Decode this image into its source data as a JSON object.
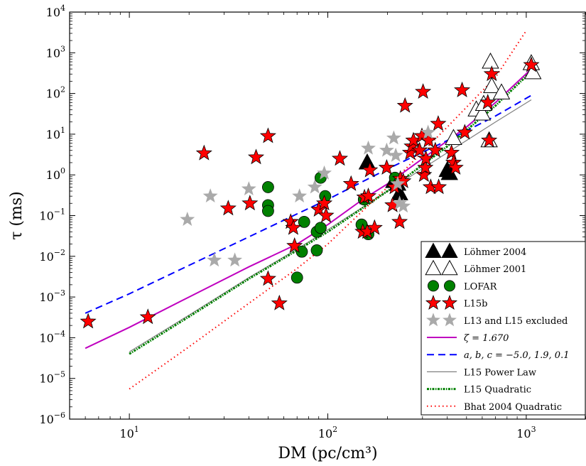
{
  "chart_data": {
    "type": "scatter",
    "xlabel": "DM (pc/cm³)",
    "ylabel": "τ (ms)",
    "xscale": "log",
    "yscale": "log",
    "xlim": [
      5,
      2000
    ],
    "ylim": [
      1e-06,
      10000.0
    ],
    "x_ticks": [
      {
        "exp": "1"
      },
      {
        "exp": "2"
      },
      {
        "exp": "3"
      }
    ],
    "y_ticks": [
      {
        "exp": "−6"
      },
      {
        "exp": "−5"
      },
      {
        "exp": "−4"
      },
      {
        "exp": "−3"
      },
      {
        "exp": "−2"
      },
      {
        "exp": "−1"
      },
      {
        "exp": "0"
      },
      {
        "exp": "1"
      },
      {
        "exp": "2"
      },
      {
        "exp": "3"
      },
      {
        "exp": "4"
      }
    ],
    "tick_base": "10",
    "legend_position": "lower right",
    "grid": false,
    "series": [
      {
        "name": "Löhmer 2004",
        "kind": "points",
        "marker": "triangle",
        "color": "#000000",
        "points": [
          [
            158,
            2.0
          ],
          [
            215,
            0.7
          ],
          [
            230,
            0.35
          ],
          [
            225,
            0.6
          ],
          [
            400,
            1.3
          ],
          [
            410,
            1.1
          ]
        ]
      },
      {
        "name": "Löhmer 2001",
        "kind": "points",
        "marker": "triangle",
        "color": "#ffffff",
        "points": [
          [
            560,
            40
          ],
          [
            600,
            32
          ],
          [
            610,
            55
          ],
          [
            650,
            7
          ],
          [
            660,
            600
          ],
          [
            670,
            150
          ],
          [
            750,
            105
          ],
          [
            1060,
            550
          ],
          [
            1080,
            330
          ],
          [
            430,
            8
          ]
        ]
      },
      {
        "name": "LOFAR",
        "kind": "points",
        "marker": "circle",
        "color": "#008000",
        "points": [
          [
            50,
            0.5
          ],
          [
            50,
            0.18
          ],
          [
            50,
            0.13
          ],
          [
            70,
            0.003
          ],
          [
            74,
            0.013
          ],
          [
            76,
            0.07
          ],
          [
            88,
            0.014
          ],
          [
            88,
            0.04
          ],
          [
            92,
            0.05
          ],
          [
            92,
            0.85
          ],
          [
            97,
            0.3
          ],
          [
            148,
            0.06
          ],
          [
            152,
            0.25
          ],
          [
            160,
            0.035
          ],
          [
            218,
            0.85
          ]
        ]
      },
      {
        "name": "L15b",
        "kind": "points",
        "marker": "star",
        "color": "#ff0000",
        "points": [
          [
            6.2,
            0.00025
          ],
          [
            12.4,
            0.00032
          ],
          [
            23.8,
            3.4
          ],
          [
            31.5,
            0.15
          ],
          [
            40.5,
            0.2
          ],
          [
            43.5,
            2.7
          ],
          [
            50,
            9
          ],
          [
            50,
            0.0028
          ],
          [
            57,
            0.0007
          ],
          [
            65,
            0.07
          ],
          [
            67,
            0.05
          ],
          [
            68,
            0.018
          ],
          [
            90,
            0.14
          ],
          [
            96,
            0.2
          ],
          [
            98,
            0.1
          ],
          [
            115,
            2.5
          ],
          [
            131,
            0.6
          ],
          [
            150,
            0.04
          ],
          [
            153,
            0.28
          ],
          [
            158,
            0.04
          ],
          [
            160,
            0.3
          ],
          [
            163,
            1.3
          ],
          [
            172,
            0.05
          ],
          [
            198,
            1.5
          ],
          [
            212,
            0.18
          ],
          [
            217,
            0.5
          ],
          [
            230,
            0.07
          ],
          [
            232,
            0.8
          ],
          [
            240,
            0.7
          ],
          [
            245,
            50
          ],
          [
            260,
            3.5
          ],
          [
            265,
            5
          ],
          [
            270,
            7
          ],
          [
            290,
            4
          ],
          [
            298,
            9
          ],
          [
            302,
            110
          ],
          [
            305,
            1.0
          ],
          [
            310,
            1.5
          ],
          [
            312,
            2.5
          ],
          [
            322,
            7
          ],
          [
            330,
            0.5
          ],
          [
            348,
            4
          ],
          [
            360,
            18
          ],
          [
            362,
            0.5
          ],
          [
            420,
            3.5
          ],
          [
            430,
            2
          ],
          [
            440,
            1.5
          ],
          [
            475,
            120
          ],
          [
            490,
            11
          ],
          [
            640,
            60
          ],
          [
            650,
            7
          ],
          [
            670,
            300
          ],
          [
            1060,
            500
          ]
        ]
      },
      {
        "name": "L13 and L15 excluded",
        "kind": "points",
        "marker": "star",
        "color": "#aaaaaa",
        "points": [
          [
            19.6,
            0.08
          ],
          [
            25.6,
            0.3
          ],
          [
            26.8,
            0.008
          ],
          [
            34,
            0.008
          ],
          [
            40,
            0.45
          ],
          [
            72,
            0.3
          ],
          [
            86,
            0.5
          ],
          [
            96,
            1.1
          ],
          [
            160,
            4.5
          ],
          [
            198,
            4
          ],
          [
            215,
            8
          ],
          [
            220,
            3
          ],
          [
            225,
            0.6
          ],
          [
            230,
            0.2
          ],
          [
            240,
            0.17
          ],
          [
            320,
            11
          ]
        ]
      },
      {
        "name": "ζ = 1.670",
        "kind": "line",
        "style": "solid",
        "color": "#bf00bf",
        "points": [
          [
            6,
            5.5e-05
          ],
          [
            10,
            0.00018
          ],
          [
            20,
            0.001
          ],
          [
            40,
            0.0055
          ],
          [
            70,
            0.02
          ],
          [
            100,
            0.06
          ],
          [
            150,
            0.25
          ],
          [
            200,
            0.6
          ],
          [
            300,
            2.5
          ],
          [
            500,
            15
          ],
          [
            700,
            60
          ],
          [
            1060,
            400
          ]
        ]
      },
      {
        "name": "a, b, c = −5.0, 1.9, 0.1",
        "kind": "line",
        "style": "dashed",
        "color": "#0000ff",
        "points": [
          [
            6,
            0.0004
          ],
          [
            10,
            0.0012
          ],
          [
            20,
            0.006
          ],
          [
            40,
            0.03
          ],
          [
            70,
            0.11
          ],
          [
            100,
            0.25
          ],
          [
            200,
            1.4
          ],
          [
            400,
            7
          ],
          [
            700,
            28
          ],
          [
            1060,
            90
          ]
        ]
      },
      {
        "name": "L15 Power Law",
        "kind": "line",
        "style": "solid",
        "color": "#808080",
        "points": [
          [
            10,
            4.5e-05
          ],
          [
            20,
            0.00036
          ],
          [
            40,
            0.003
          ],
          [
            70,
            0.015
          ],
          [
            100,
            0.045
          ],
          [
            200,
            0.4
          ],
          [
            400,
            3.5
          ],
          [
            700,
            20
          ],
          [
            1060,
            70
          ]
        ]
      },
      {
        "name": "L15 Quadratic",
        "kind": "line",
        "style": "dashdot",
        "color": "#008000",
        "points": [
          [
            10,
            4e-05
          ],
          [
            20,
            0.00033
          ],
          [
            40,
            0.0028
          ],
          [
            70,
            0.014
          ],
          [
            100,
            0.04
          ],
          [
            200,
            0.4
          ],
          [
            400,
            5
          ],
          [
            700,
            50
          ],
          [
            1060,
            350
          ]
        ]
      },
      {
        "name": "Bhat 2004 Quadratic",
        "kind": "line",
        "style": "dotted",
        "color": "#ff0000",
        "points": [
          [
            10,
            5.5e-06
          ],
          [
            20,
            6e-05
          ],
          [
            40,
            0.0007
          ],
          [
            70,
            0.005
          ],
          [
            100,
            0.02
          ],
          [
            200,
            0.5
          ],
          [
            400,
            15
          ],
          [
            700,
            250
          ],
          [
            1000,
            3500
          ]
        ]
      }
    ]
  }
}
